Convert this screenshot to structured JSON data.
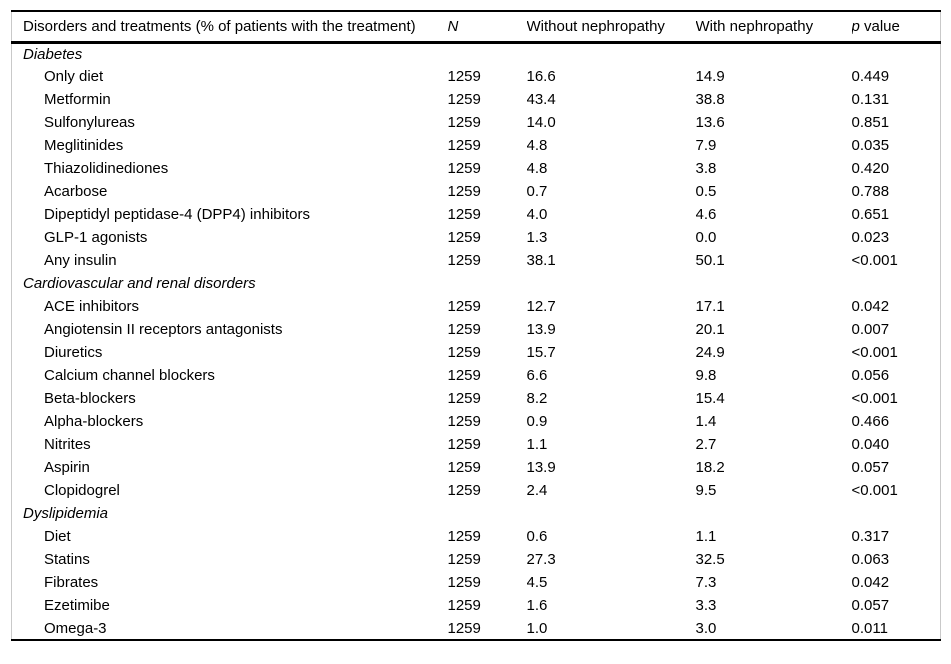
{
  "table": {
    "headers": {
      "disorders": "Disorders and treatments (% of patients with the treatment)",
      "n": "N",
      "without": "Without nephropathy",
      "with": "With nephropathy",
      "p_italic": "p",
      "p_rest": " value"
    },
    "sections": [
      {
        "title": "Diabetes",
        "rows": [
          {
            "label": "Only diet",
            "n": "1259",
            "without": "16.6",
            "with": "14.9",
            "p": "0.449"
          },
          {
            "label": "Metformin",
            "n": "1259",
            "without": "43.4",
            "with": "38.8",
            "p": "0.131"
          },
          {
            "label": "Sulfonylureas",
            "n": "1259",
            "without": "14.0",
            "with": "13.6",
            "p": "0.851"
          },
          {
            "label": "Meglitinides",
            "n": "1259",
            "without": "4.8",
            "with": "7.9",
            "p": "0.035"
          },
          {
            "label": "Thiazolidinediones",
            "n": "1259",
            "without": "4.8",
            "with": "3.8",
            "p": "0.420"
          },
          {
            "label": "Acarbose",
            "n": "1259",
            "without": "0.7",
            "with": "0.5",
            "p": "0.788"
          },
          {
            "label": "Dipeptidyl peptidase-4 (DPP4) inhibitors",
            "n": "1259",
            "without": "4.0",
            "with": "4.6",
            "p": "0.651"
          },
          {
            "label": "GLP-1 agonists",
            "n": "1259",
            "without": "1.3",
            "with": "0.0",
            "p": "0.023"
          },
          {
            "label": "Any insulin",
            "n": "1259",
            "without": "38.1",
            "with": "50.1",
            "p": "<0.001"
          }
        ]
      },
      {
        "title": "Cardiovascular and renal disorders",
        "rows": [
          {
            "label": "ACE inhibitors",
            "n": "1259",
            "without": "12.7",
            "with": "17.1",
            "p": "0.042"
          },
          {
            "label": "Angiotensin II receptors antagonists",
            "n": "1259",
            "without": "13.9",
            "with": "20.1",
            "p": "0.007"
          },
          {
            "label": "Diuretics",
            "n": "1259",
            "without": "15.7",
            "with": "24.9",
            "p": "<0.001"
          },
          {
            "label": "Calcium channel blockers",
            "n": "1259",
            "without": "6.6",
            "with": "9.8",
            "p": "0.056"
          },
          {
            "label": "Beta-blockers",
            "n": "1259",
            "without": "8.2",
            "with": "15.4",
            "p": "<0.001"
          },
          {
            "label": "Alpha-blockers",
            "n": "1259",
            "without": "0.9",
            "with": "1.4",
            "p": "0.466"
          },
          {
            "label": "Nitrites",
            "n": "1259",
            "without": "1.1",
            "with": "2.7",
            "p": "0.040"
          },
          {
            "label": "Aspirin",
            "n": "1259",
            "without": "13.9",
            "with": "18.2",
            "p": "0.057"
          },
          {
            "label": "Clopidogrel",
            "n": "1259",
            "without": "2.4",
            "with": "9.5",
            "p": "<0.001"
          }
        ]
      },
      {
        "title": "Dyslipidemia",
        "rows": [
          {
            "label": "Diet",
            "n": "1259",
            "without": "0.6",
            "with": "1.1",
            "p": "0.317"
          },
          {
            "label": "Statins",
            "n": "1259",
            "without": "27.3",
            "with": "32.5",
            "p": "0.063"
          },
          {
            "label": "Fibrates",
            "n": "1259",
            "without": "4.5",
            "with": "7.3",
            "p": "0.042"
          },
          {
            "label": "Ezetimibe",
            "n": "1259",
            "without": "1.6",
            "with": "3.3",
            "p": "0.057"
          },
          {
            "label": "Omega-3",
            "n": "1259",
            "without": "1.0",
            "with": "3.0",
            "p": "0.011"
          }
        ]
      }
    ],
    "colors": {
      "rule": "#000000",
      "side_border": "#c9c9c9",
      "text": "#000000",
      "background": "#ffffff"
    }
  }
}
